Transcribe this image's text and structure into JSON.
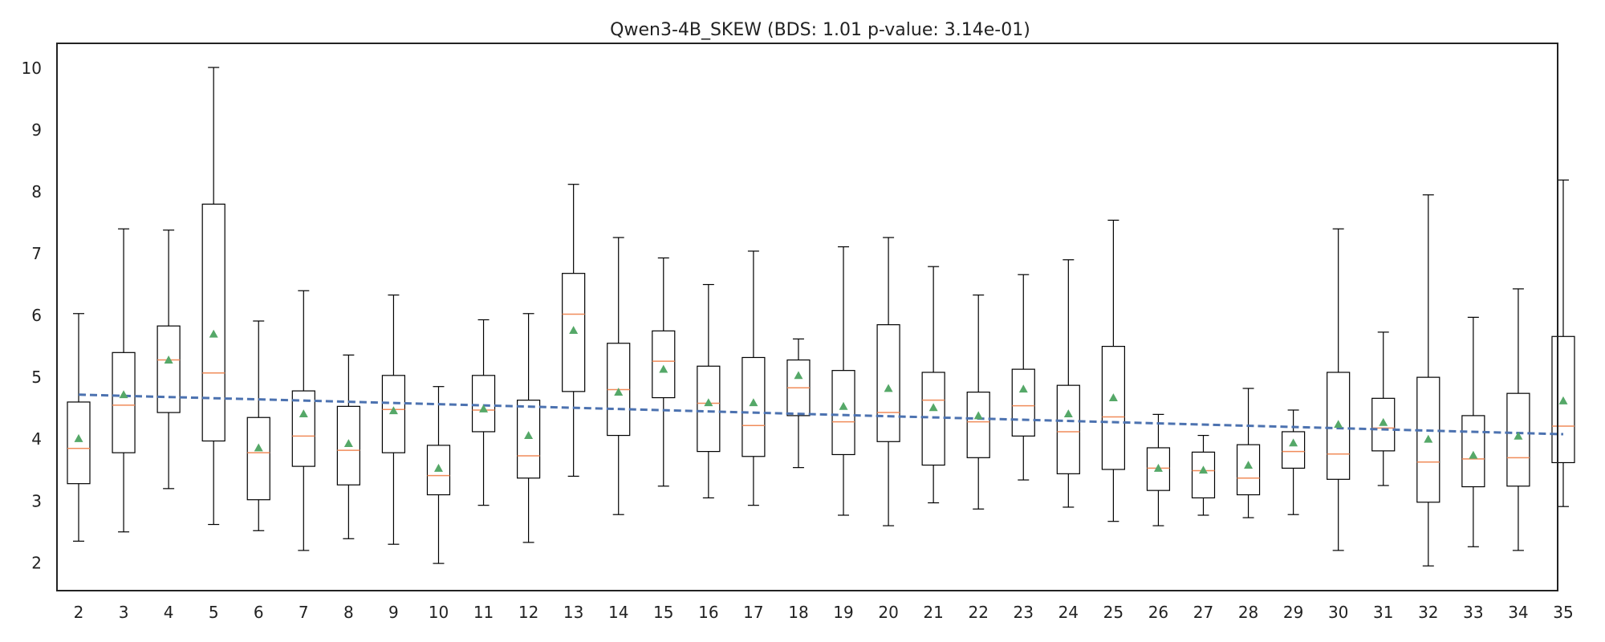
{
  "chart_data": {
    "type": "box",
    "title": "Qwen3-4B_SKEW (BDS: 1.01 p-value: 3.14e-01)",
    "xlabel": "",
    "ylabel": "",
    "ylim": [
      1.55,
      10.4
    ],
    "yticks": [
      2,
      3,
      4,
      5,
      6,
      7,
      8,
      9,
      10
    ],
    "grid": false,
    "legend": "none",
    "colors": {
      "box": "#000000",
      "median": "#f08c5a",
      "mean": "#55a868",
      "trend": "#4c72b0"
    },
    "trend": {
      "start": [
        2,
        4.72
      ],
      "end": [
        35,
        4.08
      ]
    },
    "boxes": [
      {
        "x": 2,
        "whislo": 2.35,
        "q1": 3.28,
        "med": 3.85,
        "q3": 4.6,
        "whishi": 6.03,
        "mean": 4.01
      },
      {
        "x": 3,
        "whislo": 2.5,
        "q1": 3.78,
        "med": 4.55,
        "q3": 5.4,
        "whishi": 7.4,
        "mean": 4.72
      },
      {
        "x": 4,
        "whislo": 3.2,
        "q1": 4.43,
        "med": 5.28,
        "q3": 5.83,
        "whishi": 7.38,
        "mean": 5.28
      },
      {
        "x": 5,
        "whislo": 2.62,
        "q1": 3.97,
        "med": 5.07,
        "q3": 7.8,
        "whishi": 10.01,
        "mean": 5.7
      },
      {
        "x": 6,
        "whislo": 2.52,
        "q1": 3.02,
        "med": 3.78,
        "q3": 4.35,
        "whishi": 5.91,
        "mean": 3.86
      },
      {
        "x": 7,
        "whislo": 2.2,
        "q1": 3.56,
        "med": 4.05,
        "q3": 4.78,
        "whishi": 6.4,
        "mean": 4.41
      },
      {
        "x": 8,
        "whislo": 2.39,
        "q1": 3.26,
        "med": 3.82,
        "q3": 4.53,
        "whishi": 5.36,
        "mean": 3.93
      },
      {
        "x": 9,
        "whislo": 2.3,
        "q1": 3.78,
        "med": 4.48,
        "q3": 5.03,
        "whishi": 6.33,
        "mean": 4.46
      },
      {
        "x": 10,
        "whislo": 1.99,
        "q1": 3.1,
        "med": 3.41,
        "q3": 3.9,
        "whishi": 4.85,
        "mean": 3.53
      },
      {
        "x": 11,
        "whislo": 2.93,
        "q1": 4.12,
        "med": 4.47,
        "q3": 5.03,
        "whishi": 5.93,
        "mean": 4.49
      },
      {
        "x": 12,
        "whislo": 2.33,
        "q1": 3.37,
        "med": 3.73,
        "q3": 4.63,
        "whishi": 6.03,
        "mean": 4.06
      },
      {
        "x": 13,
        "whislo": 3.4,
        "q1": 4.77,
        "med": 6.02,
        "q3": 6.68,
        "whishi": 8.12,
        "mean": 5.76
      },
      {
        "x": 14,
        "whislo": 2.78,
        "q1": 4.06,
        "med": 4.8,
        "q3": 5.55,
        "whishi": 7.26,
        "mean": 4.76
      },
      {
        "x": 15,
        "whislo": 3.24,
        "q1": 4.67,
        "med": 5.26,
        "q3": 5.75,
        "whishi": 6.93,
        "mean": 5.13
      },
      {
        "x": 16,
        "whislo": 3.05,
        "q1": 3.8,
        "med": 4.58,
        "q3": 5.18,
        "whishi": 6.5,
        "mean": 4.59
      },
      {
        "x": 17,
        "whislo": 2.93,
        "q1": 3.72,
        "med": 4.22,
        "q3": 5.32,
        "whishi": 7.04,
        "mean": 4.59
      },
      {
        "x": 18,
        "whislo": 3.54,
        "q1": 4.38,
        "med": 4.83,
        "q3": 5.28,
        "whishi": 5.62,
        "mean": 5.03
      },
      {
        "x": 19,
        "whislo": 2.77,
        "q1": 3.75,
        "med": 4.28,
        "q3": 5.11,
        "whishi": 7.11,
        "mean": 4.53
      },
      {
        "x": 20,
        "whislo": 2.6,
        "q1": 3.96,
        "med": 4.43,
        "q3": 5.85,
        "whishi": 7.26,
        "mean": 4.82
      },
      {
        "x": 21,
        "whislo": 2.97,
        "q1": 3.58,
        "med": 4.63,
        "q3": 5.08,
        "whishi": 6.79,
        "mean": 4.51
      },
      {
        "x": 22,
        "whislo": 2.87,
        "q1": 3.7,
        "med": 4.28,
        "q3": 4.76,
        "whishi": 6.33,
        "mean": 4.38
      },
      {
        "x": 23,
        "whislo": 3.34,
        "q1": 4.05,
        "med": 4.54,
        "q3": 5.13,
        "whishi": 6.66,
        "mean": 4.81
      },
      {
        "x": 24,
        "whislo": 2.9,
        "q1": 3.44,
        "med": 4.12,
        "q3": 4.87,
        "whishi": 6.9,
        "mean": 4.41
      },
      {
        "x": 25,
        "whislo": 2.67,
        "q1": 3.51,
        "med": 4.36,
        "q3": 5.5,
        "whishi": 7.54,
        "mean": 4.67
      },
      {
        "x": 26,
        "whislo": 2.6,
        "q1": 3.17,
        "med": 3.53,
        "q3": 3.86,
        "whishi": 4.4,
        "mean": 3.53
      },
      {
        "x": 27,
        "whislo": 2.77,
        "q1": 3.05,
        "med": 3.49,
        "q3": 3.79,
        "whishi": 4.06,
        "mean": 3.5
      },
      {
        "x": 28,
        "whislo": 2.73,
        "q1": 3.1,
        "med": 3.37,
        "q3": 3.91,
        "whishi": 4.82,
        "mean": 3.58
      },
      {
        "x": 29,
        "whislo": 2.78,
        "q1": 3.53,
        "med": 3.8,
        "q3": 4.12,
        "whishi": 4.47,
        "mean": 3.94
      },
      {
        "x": 30,
        "whislo": 2.2,
        "q1": 3.35,
        "med": 3.76,
        "q3": 5.08,
        "whishi": 7.4,
        "mean": 4.24
      },
      {
        "x": 31,
        "whislo": 3.25,
        "q1": 3.81,
        "med": 4.18,
        "q3": 4.66,
        "whishi": 5.73,
        "mean": 4.27
      },
      {
        "x": 32,
        "whislo": 1.95,
        "q1": 2.98,
        "med": 3.63,
        "q3": 5.0,
        "whishi": 7.95,
        "mean": 4.0
      },
      {
        "x": 33,
        "whislo": 2.26,
        "q1": 3.23,
        "med": 3.68,
        "q3": 4.38,
        "whishi": 5.97,
        "mean": 3.74
      },
      {
        "x": 34,
        "whislo": 2.2,
        "q1": 3.24,
        "med": 3.7,
        "q3": 4.74,
        "whishi": 6.43,
        "mean": 4.05
      },
      {
        "x": 35,
        "whislo": 2.91,
        "q1": 3.62,
        "med": 4.21,
        "q3": 5.66,
        "whishi": 8.19,
        "mean": 4.62
      }
    ]
  }
}
